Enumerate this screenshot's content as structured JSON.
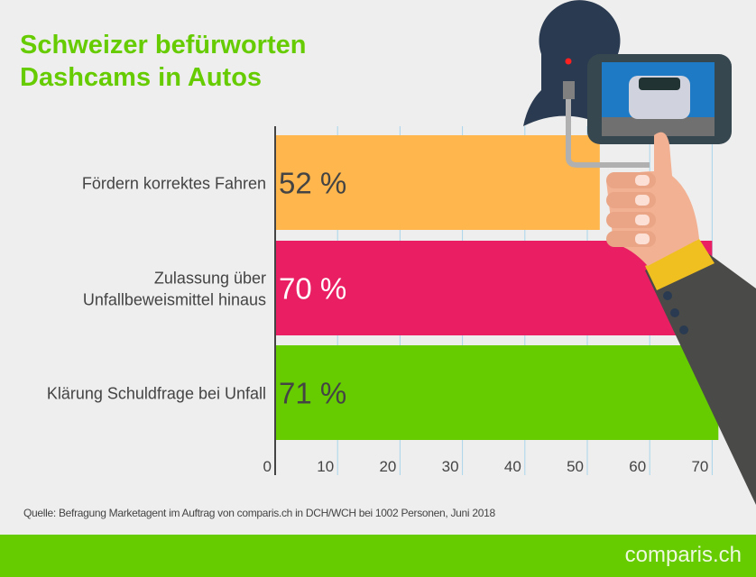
{
  "chart_data": {
    "type": "bar",
    "orientation": "horizontal",
    "title": "Schweizer befürworten Dashcams in Autos",
    "title_lines": [
      "Schweizer befürworten",
      "Dashcams in Autos"
    ],
    "categories": [
      [
        "Fördern korrektes Fahren"
      ],
      [
        "Zulassung über",
        "Unfallbeweismittel hinaus"
      ],
      [
        "Klärung Schuldfrage bei Unfall"
      ]
    ],
    "values": [
      52,
      70,
      71
    ],
    "data_labels": [
      "52 %",
      "70 %",
      "71 %"
    ],
    "colors": [
      "#ffb74d",
      "#e91e63",
      "#66cc00"
    ],
    "xlim": [
      0,
      72
    ],
    "xticks": [
      0,
      10,
      20,
      30,
      40,
      50,
      60,
      70
    ],
    "grid": true,
    "xlabel": "",
    "ylabel": ""
  },
  "source": "Quelle: Befragung Marketagent im Auftrag von comparis.ch in DCH/WCH bei 1002 Personen, Juni 2018",
  "logo": "comparis.ch",
  "colors": {
    "accent": "#66cc00",
    "background": "#eeeeee"
  }
}
